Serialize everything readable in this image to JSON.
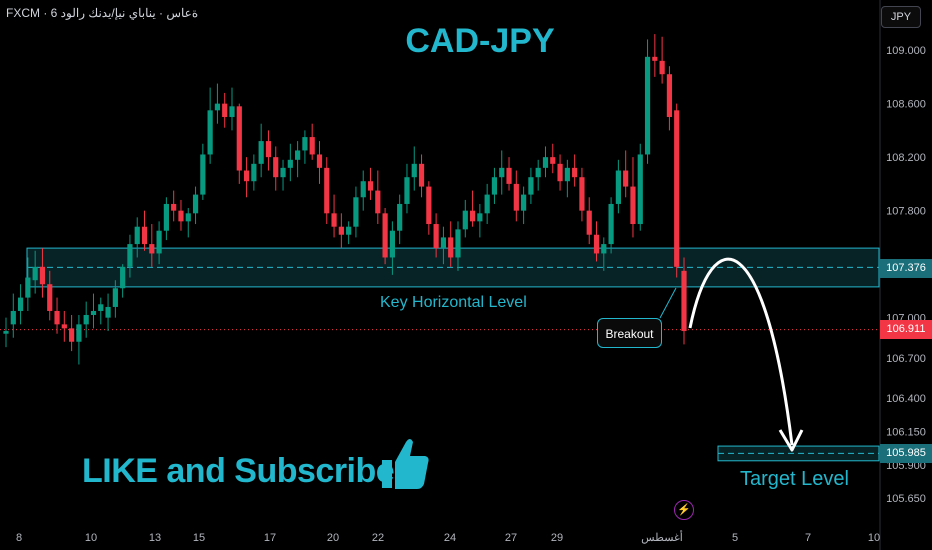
{
  "header": {
    "symbol_line": "FXCM · 6 ةعاس · يناباي نيإ/يدنك رالود",
    "currency_button": "JPY"
  },
  "annotations": {
    "title": "CAD-JPY",
    "key_level_label": "Key Horizontal Level",
    "breakout_label": "Breakout",
    "target_label": "Target Level",
    "cta": "LIKE and Subscribe",
    "icons": [
      "thumbs-up-icon",
      "lightning-icon"
    ]
  },
  "colors": {
    "up": "#089981",
    "down": "#f23645",
    "accent": "#23b7cd",
    "zone_fill": "#0f3f46",
    "background": "#000000"
  },
  "chart_data": {
    "type": "candlestick",
    "title": "CAD-JPY",
    "ylim": [
      105.45,
      109.3
    ],
    "y_ticks": [
      "109.000",
      "108.600",
      "108.200",
      "107.800",
      "107.000",
      "106.700",
      "106.400",
      "106.150",
      "105.900",
      "105.650"
    ],
    "x_ticks": [
      "8",
      "10",
      "13",
      "15",
      "17",
      "20",
      "22",
      "24",
      "27",
      "29",
      "أغسطس",
      "5",
      "7",
      "10"
    ],
    "key_level": {
      "price": 107.376,
      "label": "107.376",
      "zone": [
        107.23,
        107.52
      ]
    },
    "last_price": {
      "price": 106.911,
      "label": "106.911"
    },
    "target_level": {
      "price": 105.985,
      "label": "105.985",
      "zone": [
        105.93,
        106.04
      ]
    },
    "candles": [
      [
        106.88,
        107.0,
        106.78,
        106.9
      ],
      [
        106.95,
        107.18,
        106.85,
        107.05
      ],
      [
        107.05,
        107.25,
        106.95,
        107.15
      ],
      [
        107.15,
        107.45,
        107.05,
        107.3
      ],
      [
        107.28,
        107.5,
        107.18,
        107.38
      ],
      [
        107.38,
        107.52,
        107.15,
        107.25
      ],
      [
        107.25,
        107.35,
        106.98,
        107.05
      ],
      [
        107.05,
        107.15,
        106.88,
        106.95
      ],
      [
        106.95,
        107.05,
        106.82,
        106.92
      ],
      [
        106.92,
        107.02,
        106.75,
        106.82
      ],
      [
        106.82,
        107.02,
        106.65,
        106.95
      ],
      [
        106.95,
        107.12,
        106.85,
        107.02
      ],
      [
        107.02,
        107.18,
        106.92,
        107.05
      ],
      [
        107.05,
        107.15,
        106.95,
        107.1
      ],
      [
        107.0,
        107.18,
        106.9,
        107.08
      ],
      [
        107.08,
        107.28,
        107.0,
        107.22
      ],
      [
        107.22,
        107.4,
        107.15,
        107.38
      ],
      [
        107.38,
        107.62,
        107.3,
        107.55
      ],
      [
        107.55,
        107.75,
        107.45,
        107.68
      ],
      [
        107.68,
        107.8,
        107.5,
        107.55
      ],
      [
        107.55,
        107.7,
        107.38,
        107.48
      ],
      [
        107.48,
        107.72,
        107.4,
        107.65
      ],
      [
        107.65,
        107.9,
        107.58,
        107.85
      ],
      [
        107.85,
        107.95,
        107.72,
        107.8
      ],
      [
        107.8,
        107.88,
        107.65,
        107.72
      ],
      [
        107.72,
        107.82,
        107.6,
        107.78
      ],
      [
        107.78,
        107.98,
        107.7,
        107.92
      ],
      [
        107.92,
        108.3,
        107.88,
        108.22
      ],
      [
        108.22,
        108.72,
        108.15,
        108.55
      ],
      [
        108.55,
        108.75,
        108.45,
        108.6
      ],
      [
        108.6,
        108.68,
        108.42,
        108.5
      ],
      [
        108.5,
        108.72,
        108.4,
        108.58
      ],
      [
        108.58,
        108.6,
        108.0,
        108.1
      ],
      [
        108.1,
        108.2,
        107.9,
        108.02
      ],
      [
        108.02,
        108.22,
        107.95,
        108.15
      ],
      [
        108.15,
        108.45,
        108.05,
        108.32
      ],
      [
        108.32,
        108.4,
        108.1,
        108.2
      ],
      [
        108.2,
        108.28,
        107.95,
        108.05
      ],
      [
        108.05,
        108.18,
        107.95,
        108.12
      ],
      [
        108.12,
        108.3,
        108.02,
        108.18
      ],
      [
        108.18,
        108.32,
        108.05,
        108.25
      ],
      [
        108.25,
        108.4,
        108.15,
        108.35
      ],
      [
        108.35,
        108.45,
        108.18,
        108.22
      ],
      [
        108.22,
        108.32,
        108.0,
        108.12
      ],
      [
        108.12,
        108.2,
        107.7,
        107.78
      ],
      [
        107.78,
        107.92,
        107.6,
        107.68
      ],
      [
        107.68,
        107.78,
        107.52,
        107.62
      ],
      [
        107.62,
        107.72,
        107.55,
        107.68
      ],
      [
        107.68,
        107.98,
        107.6,
        107.9
      ],
      [
        107.9,
        108.1,
        107.8,
        108.02
      ],
      [
        108.02,
        108.12,
        107.88,
        107.95
      ],
      [
        107.95,
        108.1,
        107.7,
        107.78
      ],
      [
        107.78,
        107.82,
        107.4,
        107.45
      ],
      [
        107.45,
        107.72,
        107.32,
        107.65
      ],
      [
        107.65,
        107.92,
        107.55,
        107.85
      ],
      [
        107.85,
        108.15,
        107.78,
        108.05
      ],
      [
        108.05,
        108.28,
        107.95,
        108.15
      ],
      [
        108.15,
        108.22,
        107.9,
        107.98
      ],
      [
        107.98,
        108.02,
        107.62,
        107.7
      ],
      [
        107.7,
        107.78,
        107.45,
        107.52
      ],
      [
        107.52,
        107.68,
        107.4,
        107.6
      ],
      [
        107.6,
        107.72,
        107.38,
        107.45
      ],
      [
        107.45,
        107.72,
        107.35,
        107.66
      ],
      [
        107.66,
        107.88,
        107.6,
        107.8
      ],
      [
        107.8,
        107.95,
        107.68,
        107.72
      ],
      [
        107.72,
        107.85,
        107.6,
        107.78
      ],
      [
        107.78,
        108.0,
        107.7,
        107.92
      ],
      [
        107.92,
        108.12,
        107.85,
        108.05
      ],
      [
        108.05,
        108.25,
        107.92,
        108.12
      ],
      [
        108.12,
        108.2,
        107.95,
        108.0
      ],
      [
        108.0,
        108.1,
        107.72,
        107.8
      ],
      [
        107.8,
        107.98,
        107.7,
        107.92
      ],
      [
        107.92,
        108.12,
        107.85,
        108.05
      ],
      [
        108.05,
        108.18,
        107.95,
        108.12
      ],
      [
        108.12,
        108.28,
        108.05,
        108.2
      ],
      [
        108.2,
        108.3,
        108.08,
        108.15
      ],
      [
        108.15,
        108.22,
        107.95,
        108.02
      ],
      [
        108.02,
        108.18,
        107.9,
        108.12
      ],
      [
        108.12,
        108.22,
        107.98,
        108.05
      ],
      [
        108.05,
        108.12,
        107.72,
        107.8
      ],
      [
        107.8,
        107.9,
        107.55,
        107.62
      ],
      [
        107.62,
        107.72,
        107.42,
        107.48
      ],
      [
        107.48,
        107.6,
        107.35,
        107.55
      ],
      [
        107.55,
        107.9,
        107.48,
        107.85
      ],
      [
        107.85,
        108.18,
        107.78,
        108.1
      ],
      [
        108.1,
        108.25,
        107.9,
        107.98
      ],
      [
        107.98,
        108.2,
        107.6,
        107.7
      ],
      [
        107.7,
        108.3,
        107.65,
        108.22
      ],
      [
        108.22,
        109.08,
        108.15,
        108.95
      ],
      [
        108.95,
        109.12,
        108.8,
        108.92
      ],
      [
        108.92,
        109.1,
        108.75,
        108.82
      ],
      [
        108.82,
        108.88,
        108.4,
        108.5
      ],
      [
        108.55,
        108.6,
        107.3,
        107.38
      ],
      [
        107.35,
        107.45,
        106.8,
        106.9
      ]
    ]
  }
}
